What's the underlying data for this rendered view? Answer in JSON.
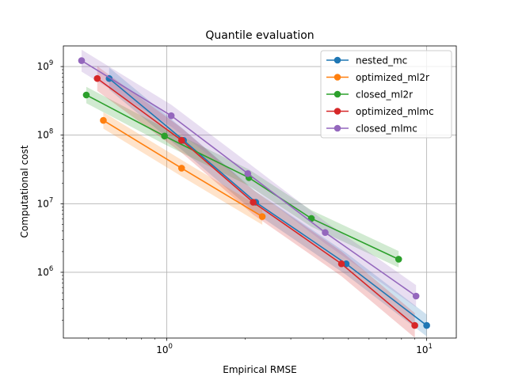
{
  "chart_data": {
    "type": "line",
    "title": "Quantile evaluation",
    "xlabel": "Empirical RMSE",
    "ylabel": "Computational cost",
    "xscale": "log",
    "yscale": "log",
    "xlim": [
      0.4,
      13
    ],
    "ylim": [
      110000,
      2000000000
    ],
    "grid": true,
    "legend_position": "top-right",
    "x_ticks": [
      {
        "value": 1,
        "base": "10",
        "exp": "0"
      },
      {
        "value": 10,
        "base": "10",
        "exp": "1"
      }
    ],
    "y_ticks": [
      {
        "value": 1000000,
        "base": "10",
        "exp": "6"
      },
      {
        "value": 10000000,
        "base": "10",
        "exp": "7"
      },
      {
        "value": 100000000,
        "base": "10",
        "exp": "8"
      },
      {
        "value": 1000000000,
        "base": "10",
        "exp": "9"
      }
    ],
    "series": [
      {
        "name": "nested_mc",
        "color": "#1f77b4",
        "points": [
          [
            0.6,
            670000000
          ],
          [
            1.16,
            84000000
          ],
          [
            2.2,
            10500000
          ],
          [
            4.9,
            1330000
          ],
          [
            10.0,
            168000
          ]
        ],
        "band": 0.16
      },
      {
        "name": "optimized_ml2r",
        "color": "#ff7f0e",
        "points": [
          [
            0.57,
            164000000
          ],
          [
            1.14,
            33000000
          ],
          [
            2.33,
            6500000
          ]
        ],
        "band": 0.12
      },
      {
        "name": "closed_ml2r",
        "color": "#2ca02c",
        "points": [
          [
            0.49,
            385000000
          ],
          [
            0.98,
            97000000
          ],
          [
            2.07,
            24000000
          ],
          [
            3.6,
            6100000
          ],
          [
            7.8,
            1550000
          ]
        ],
        "band": 0.12
      },
      {
        "name": "optimized_mlmc",
        "color": "#d62728",
        "points": [
          [
            0.54,
            670000000
          ],
          [
            1.14,
            84000000
          ],
          [
            2.15,
            10500000
          ],
          [
            4.7,
            1330000
          ],
          [
            9.0,
            168000
          ]
        ],
        "band": 0.18
      },
      {
        "name": "closed_mlmc",
        "color": "#9467bd",
        "points": [
          [
            0.47,
            1220000000
          ],
          [
            1.04,
            192000000
          ],
          [
            2.05,
            27500000
          ],
          [
            4.07,
            3800000
          ],
          [
            9.1,
            450000
          ]
        ],
        "band": 0.16
      }
    ]
  }
}
